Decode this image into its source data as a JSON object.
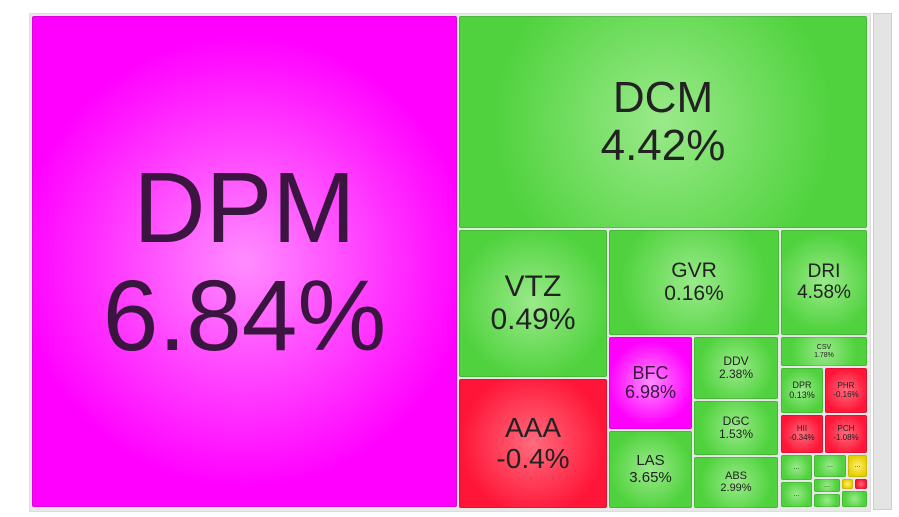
{
  "tiles": [
    {
      "symbol": "DPM",
      "change": "6.84%"
    },
    {
      "symbol": "DCM",
      "change": "4.42%"
    },
    {
      "symbol": "VTZ",
      "change": "0.49%"
    },
    {
      "symbol": "AAA",
      "change": "-0.4%"
    },
    {
      "symbol": "GVR",
      "change": "0.16%"
    },
    {
      "symbol": "DRI",
      "change": "4.58%"
    },
    {
      "symbol": "BFC",
      "change": "6.98%"
    },
    {
      "symbol": "LAS",
      "change": "3.65%"
    },
    {
      "symbol": "DDV",
      "change": "2.38%"
    },
    {
      "symbol": "DGC",
      "change": "1.53%"
    },
    {
      "symbol": "ABS",
      "change": "2.99%"
    },
    {
      "symbol": "CSV",
      "change": "1.78%"
    },
    {
      "symbol": "DPR",
      "change": "0.13%"
    },
    {
      "symbol": "PHR",
      "change": "-0.16%"
    },
    {
      "symbol": "HII",
      "change": "-0.34%"
    },
    {
      "symbol": "PCH",
      "change": "-1.08%"
    }
  ],
  "more_tiles": [
    "...",
    "...",
    "...",
    "...",
    "..."
  ]
}
